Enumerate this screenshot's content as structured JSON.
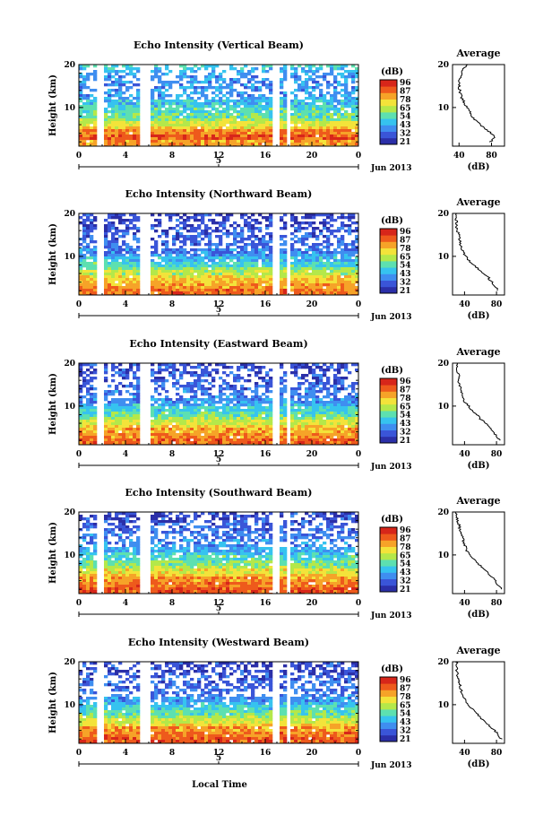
{
  "figure": {
    "xlabel": "Local Time",
    "date_label": "Jun 2013",
    "day_label": "5"
  },
  "colorbar": {
    "unit": "(dB)",
    "ticks": [
      "96",
      "87",
      "78",
      "65",
      "54",
      "43",
      "32",
      "21"
    ],
    "ticks_by_panel": [
      [
        "96",
        "87",
        "78",
        "65",
        "54",
        "43",
        "32",
        "21"
      ],
      [
        "96",
        "87",
        "78",
        "65",
        "54",
        "43",
        "32",
        "21"
      ],
      [
        "96",
        "87",
        "78",
        "65",
        "54",
        "43",
        "32",
        "21"
      ],
      [
        "96",
        "87",
        "78",
        "65",
        "54",
        "43",
        "32",
        "21"
      ],
      [
        "96",
        "87",
        "78",
        "65",
        "54",
        "43",
        "32",
        "21"
      ]
    ],
    "colors": [
      "#2b2fa8",
      "#3a55d8",
      "#3f8ef0",
      "#36c3ef",
      "#5de0b0",
      "#b4e84a",
      "#f3e33a",
      "#f6a328",
      "#ee5a1c",
      "#d7261a"
    ]
  },
  "chart_data": [
    {
      "type": "heatmap",
      "title": "Echo Intensity (Vertical Beam)",
      "ylabel": "Height (km)",
      "x_ticks": [
        "0",
        "4",
        "8",
        "12",
        "16",
        "20",
        "0"
      ],
      "xlim": [
        0,
        24
      ],
      "y_ticks": [
        "20",
        "10"
      ],
      "ylim": [
        1,
        20
      ],
      "zlim": [
        21,
        96
      ],
      "gaps_hours": [
        [
          1.4,
          2.0
        ],
        [
          5.1,
          6.0
        ],
        [
          16.5,
          17.1
        ],
        [
          17.6,
          17.9
        ]
      ],
      "profile": {
        "title": "Average",
        "xlabel": "(dB)",
        "x_ticks": [
          "40",
          "80"
        ],
        "xlim": [
          32,
          96
        ],
        "y_ticks": [
          "20",
          "10"
        ],
        "height_km": [
          2,
          3,
          4,
          5,
          6,
          7,
          8,
          9,
          10,
          11,
          12,
          13,
          14,
          15,
          16,
          17,
          18,
          19,
          20
        ],
        "avg_db": [
          78,
          85,
          80,
          72,
          66,
          60,
          56,
          53,
          50,
          47,
          44,
          42,
          41,
          40,
          40,
          41,
          43,
          46,
          51
        ]
      }
    },
    {
      "type": "heatmap",
      "title": "Echo Intensity (Northward Beam)",
      "ylabel": "Height (km)",
      "x_ticks": [
        "0",
        "4",
        "8",
        "12",
        "16",
        "20",
        "0"
      ],
      "xlim": [
        0,
        24
      ],
      "y_ticks": [
        "20",
        "10"
      ],
      "ylim": [
        1,
        20
      ],
      "zlim": [
        21,
        96
      ],
      "gaps_hours": [
        [
          1.4,
          2.0
        ],
        [
          5.1,
          6.0
        ],
        [
          16.5,
          17.1
        ],
        [
          17.6,
          17.9
        ]
      ],
      "profile": {
        "title": "Average",
        "xlabel": "(dB)",
        "x_ticks": [
          "40",
          "80"
        ],
        "xlim": [
          25,
          90
        ],
        "y_ticks": [
          "20",
          "10"
        ],
        "height_km": [
          2,
          3,
          4,
          5,
          6,
          7,
          8,
          9,
          10,
          11,
          12,
          13,
          14,
          15,
          16,
          17,
          18,
          19,
          20
        ],
        "avg_db": [
          82,
          78,
          74,
          70,
          64,
          58,
          52,
          46,
          42,
          38,
          36,
          35,
          34,
          33,
          31,
          30,
          30,
          29,
          30
        ]
      }
    },
    {
      "type": "heatmap",
      "title": "Echo Intensity (Eastward Beam)",
      "ylabel": "Height (km)",
      "x_ticks": [
        "0",
        "4",
        "8",
        "12",
        "16",
        "20",
        "0"
      ],
      "xlim": [
        0,
        24
      ],
      "y_ticks": [
        "20",
        "10"
      ],
      "ylim": [
        1,
        20
      ],
      "zlim": [
        21,
        96
      ],
      "gaps_hours": [
        [
          1.4,
          2.0
        ],
        [
          5.1,
          6.0
        ],
        [
          16.5,
          17.1
        ],
        [
          17.6,
          17.9
        ]
      ],
      "profile": {
        "title": "Average",
        "xlabel": "(dB)",
        "x_ticks": [
          "40",
          "80"
        ],
        "xlim": [
          25,
          90
        ],
        "y_ticks": [
          "20",
          "10"
        ],
        "height_km": [
          2,
          3,
          4,
          5,
          6,
          7,
          8,
          9,
          10,
          11,
          12,
          13,
          14,
          15,
          16,
          17,
          18,
          19,
          20
        ],
        "avg_db": [
          84,
          80,
          76,
          72,
          66,
          60,
          55,
          50,
          45,
          40,
          38,
          37,
          35,
          33,
          32,
          33,
          31,
          30,
          30
        ]
      }
    },
    {
      "type": "heatmap",
      "title": "Echo Intensity (Southward Beam)",
      "ylabel": "Height (km)",
      "x_ticks": [
        "0",
        "4",
        "8",
        "12",
        "16",
        "20",
        "0"
      ],
      "xlim": [
        0,
        24
      ],
      "y_ticks": [
        "20",
        "10"
      ],
      "ylim": [
        1,
        20
      ],
      "zlim": [
        21,
        96
      ],
      "gaps_hours": [
        [
          1.4,
          2.0
        ],
        [
          5.1,
          6.0
        ],
        [
          16.5,
          17.1
        ],
        [
          17.6,
          17.9
        ]
      ],
      "profile": {
        "title": "Average",
        "xlabel": "(dB)",
        "x_ticks": [
          "40",
          "80"
        ],
        "xlim": [
          25,
          90
        ],
        "y_ticks": [
          "20",
          "10"
        ],
        "height_km": [
          2,
          3,
          4,
          5,
          6,
          7,
          8,
          9,
          10,
          11,
          12,
          13,
          14,
          15,
          16,
          17,
          18,
          19,
          20
        ],
        "avg_db": [
          86,
          82,
          78,
          74,
          68,
          62,
          57,
          52,
          47,
          43,
          41,
          39,
          38,
          36,
          34,
          33,
          31,
          30,
          30
        ]
      }
    },
    {
      "type": "heatmap",
      "title": "Echo Intensity (Westward Beam)",
      "ylabel": "Height (km)",
      "x_ticks": [
        "0",
        "4",
        "8",
        "12",
        "16",
        "20",
        "0"
      ],
      "xlim": [
        0,
        24
      ],
      "y_ticks": [
        "20",
        "10"
      ],
      "ylim": [
        1,
        20
      ],
      "zlim": [
        21,
        96
      ],
      "gaps_hours": [
        [
          1.4,
          2.0
        ],
        [
          5.1,
          6.0
        ],
        [
          16.5,
          17.1
        ],
        [
          17.6,
          17.9
        ]
      ],
      "profile": {
        "title": "Average",
        "xlabel": "(dB)",
        "x_ticks": [
          "40",
          "80"
        ],
        "xlim": [
          25,
          90
        ],
        "y_ticks": [
          "20",
          "10"
        ],
        "height_km": [
          2,
          3,
          4,
          5,
          6,
          7,
          8,
          9,
          10,
          11,
          12,
          13,
          14,
          15,
          16,
          17,
          18,
          19,
          20
        ],
        "avg_db": [
          86,
          82,
          78,
          72,
          66,
          60,
          55,
          50,
          45,
          41,
          38,
          36,
          35,
          34,
          33,
          31,
          30,
          30,
          30
        ]
      }
    }
  ]
}
